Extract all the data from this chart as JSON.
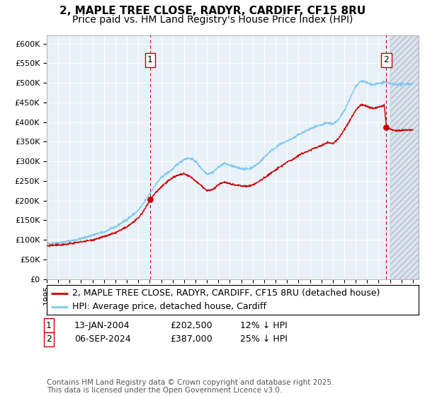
{
  "title": "2, MAPLE TREE CLOSE, RADYR, CARDIFF, CF15 8RU",
  "subtitle": "Price paid vs. HM Land Registry's House Price Index (HPI)",
  "ylim": [
    0,
    620000
  ],
  "xlim_start": 1995.0,
  "xlim_end": 2027.5,
  "yticks": [
    0,
    50000,
    100000,
    150000,
    200000,
    250000,
    300000,
    350000,
    400000,
    450000,
    500000,
    550000,
    600000
  ],
  "ytick_labels": [
    "£0",
    "£50K",
    "£100K",
    "£150K",
    "£200K",
    "£250K",
    "£300K",
    "£350K",
    "£400K",
    "£450K",
    "£500K",
    "£550K",
    "£600K"
  ],
  "xtick_years": [
    1995,
    1996,
    1997,
    1998,
    1999,
    2000,
    2001,
    2002,
    2003,
    2004,
    2005,
    2006,
    2007,
    2008,
    2009,
    2010,
    2011,
    2012,
    2013,
    2014,
    2015,
    2016,
    2017,
    2018,
    2019,
    2020,
    2021,
    2022,
    2023,
    2024,
    2025,
    2026,
    2027
  ],
  "hpi_color": "#7ec8f0",
  "price_color": "#cc0000",
  "marker_color": "#cc0000",
  "vline_color": "#cc0000",
  "plot_bg_color": "#e8f0f8",
  "grid_color": "#ffffff",
  "marker1_x": 2004.04,
  "marker1_y": 202500,
  "marker1_label": "1",
  "marker2_x": 2024.68,
  "marker2_y": 387000,
  "marker2_label": "2",
  "hatch_start": 2025.0,
  "legend_line1": "2, MAPLE TREE CLOSE, RADYR, CARDIFF, CF15 8RU (detached house)",
  "legend_line2": "HPI: Average price, detached house, Cardiff",
  "table_row1": [
    "1",
    "13-JAN-2004",
    "£202,500",
    "12% ↓ HPI"
  ],
  "table_row2": [
    "2",
    "06-SEP-2024",
    "£387,000",
    "25% ↓ HPI"
  ],
  "footnote": "Contains HM Land Registry data © Crown copyright and database right 2025.\nThis data is licensed under the Open Government Licence v3.0.",
  "title_fontsize": 11,
  "subtitle_fontsize": 10,
  "tick_fontsize": 8,
  "legend_fontsize": 9,
  "table_fontsize": 9,
  "footnote_fontsize": 7.5
}
